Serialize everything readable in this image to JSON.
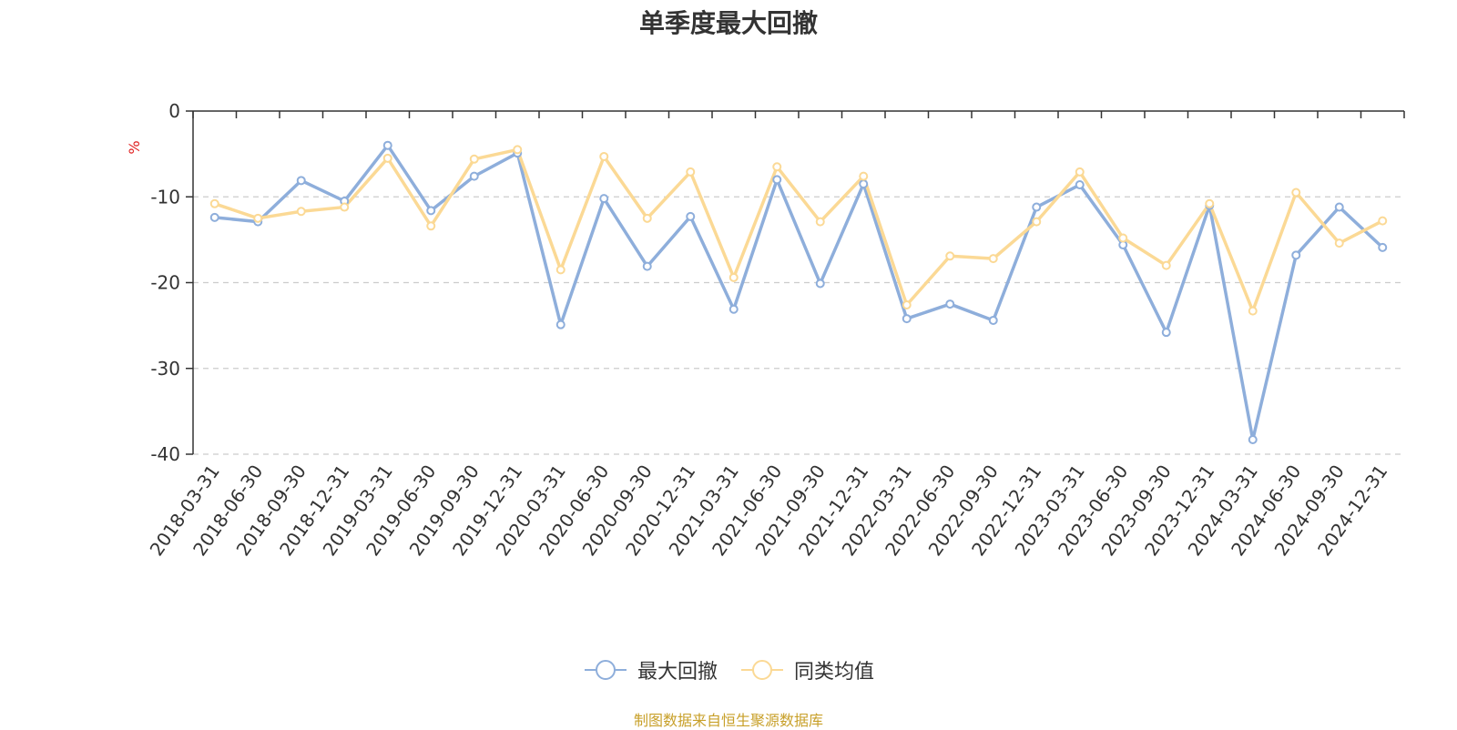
{
  "chart_data": {
    "type": "line",
    "title": "单季度最大回撤",
    "ylabel": "%",
    "xlabel": "",
    "ylim": [
      -40,
      0
    ],
    "yticks": [
      0,
      -10,
      -20,
      -30,
      -40
    ],
    "grid": true,
    "legend_position": "bottom-center",
    "categories": [
      "2018-03-31",
      "2018-06-30",
      "2018-09-30",
      "2018-12-31",
      "2019-03-31",
      "2019-06-30",
      "2019-09-30",
      "2019-12-31",
      "2020-03-31",
      "2020-06-30",
      "2020-09-30",
      "2020-12-31",
      "2021-03-31",
      "2021-06-30",
      "2021-09-30",
      "2021-12-31",
      "2022-03-31",
      "2022-06-30",
      "2022-09-30",
      "2022-12-31",
      "2023-03-31",
      "2023-06-30",
      "2023-09-30",
      "2023-12-31",
      "2024-03-31",
      "2024-06-30",
      "2024-09-30",
      "2024-12-31"
    ],
    "series": [
      {
        "name": "最大回撤",
        "color": "#8eaedb",
        "values": [
          -12.4,
          -12.9,
          -8.1,
          -10.5,
          -4.0,
          -11.6,
          -7.6,
          -4.9,
          -24.9,
          -10.2,
          -18.1,
          -12.3,
          -23.1,
          -8.0,
          -20.1,
          -8.5,
          -24.2,
          -22.5,
          -24.4,
          -11.2,
          -8.6,
          -15.6,
          -25.8,
          -11.0,
          -38.3,
          -16.8,
          -11.2,
          -15.9
        ]
      },
      {
        "name": "同类均值",
        "color": "#fbd995",
        "values": [
          -10.8,
          -12.5,
          -11.7,
          -11.2,
          -5.5,
          -13.4,
          -5.6,
          -4.5,
          -18.5,
          -5.3,
          -12.5,
          -7.1,
          -19.4,
          -6.5,
          -12.9,
          -7.6,
          -22.6,
          -16.9,
          -17.2,
          -12.9,
          -7.1,
          -14.8,
          -18.0,
          -10.8,
          -23.3,
          -9.5,
          -15.4,
          -12.8
        ]
      }
    ],
    "source": "制图数据来自恒生聚源数据库"
  }
}
